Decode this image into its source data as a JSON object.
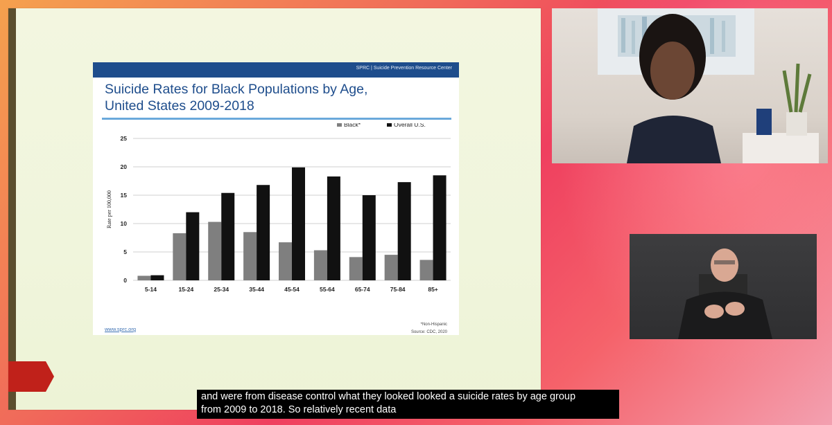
{
  "slide": {
    "header_text": "SPRC  |  Suicide Prevention Resource Center",
    "title_line1": "Suicide Rates for Black Populations by Age,",
    "title_line2": "United States 2009-2018",
    "website": "www.sprc.org",
    "footnote1": "*Non-Hispanic",
    "footnote2": "Source: CDC, 2020"
  },
  "chart_data": {
    "type": "bar",
    "categories": [
      "5-14",
      "15-24",
      "25-34",
      "35-44",
      "45-54",
      "55-64",
      "65-74",
      "75-84",
      "85+"
    ],
    "series": [
      {
        "name": "Black*",
        "values": [
          0.8,
          8.3,
          10.3,
          8.5,
          6.7,
          5.3,
          4.1,
          4.5,
          3.6
        ],
        "color": "#7f7f7f"
      },
      {
        "name": "Overall U.S.",
        "values": [
          0.9,
          12.0,
          15.4,
          16.8,
          19.9,
          18.3,
          15.0,
          17.3,
          18.5
        ],
        "color": "#111111"
      }
    ],
    "ylabel": "Rate per 100,000",
    "ylim": [
      0,
      25
    ],
    "yticks": [
      0,
      5,
      10,
      15,
      20,
      25
    ],
    "grid": true,
    "legend_position": "top-right"
  },
  "captions": {
    "line1": "and were from disease control what they looked looked a suicide rates by age group",
    "line2": "from 2009 to 2018.  So relatively recent data"
  },
  "colors": {
    "slide_header": "#1e4d8c",
    "title_blue": "#1e4d8c",
    "rule_blue": "#6aa9db",
    "arrow_red": "#c0211a"
  }
}
